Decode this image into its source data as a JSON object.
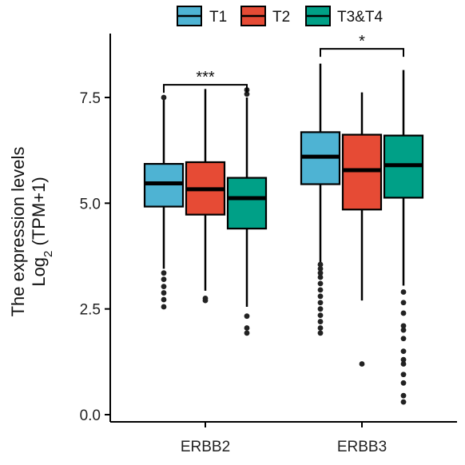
{
  "chart_data": {
    "type": "box",
    "ylabel_line1": "The expression levels",
    "ylabel_line2_prefix": "Log",
    "ylabel_line2_sub": "2",
    "ylabel_line2_suffix": " (TPM+1)",
    "ylim": [
      0,
      9
    ],
    "yticks": [
      0.0,
      2.5,
      5.0,
      7.5
    ],
    "ytick_labels": [
      "0.0",
      "2.5",
      "5.0",
      "7.5"
    ],
    "legend_position": "top",
    "grid": false,
    "categories": [
      "ERBB2",
      "ERBB3"
    ],
    "series": [
      {
        "name": "T1",
        "color": "#4EB3D3"
      },
      {
        "name": "T2",
        "color": "#E64B35"
      },
      {
        "name": "T3&T4",
        "color": "#00A087"
      }
    ],
    "boxes": [
      {
        "category": "ERBB2",
        "series": "T1",
        "q1": 4.92,
        "median": 5.47,
        "q3": 5.93,
        "whisker_low": 3.45,
        "whisker_high": 7.45,
        "outliers": [
          3.35,
          3.2,
          3.03,
          2.88,
          2.72,
          2.55,
          7.5
        ]
      },
      {
        "category": "ERBB2",
        "series": "T2",
        "q1": 4.73,
        "median": 5.33,
        "q3": 5.97,
        "whisker_low": 2.93,
        "whisker_high": 7.7,
        "outliers": [
          2.75,
          2.7
        ]
      },
      {
        "category": "ERBB2",
        "series": "T3&T4",
        "q1": 4.4,
        "median": 5.12,
        "q3": 5.6,
        "whisker_low": 2.55,
        "whisker_high": 7.5,
        "outliers": [
          2.33,
          2.05,
          1.93,
          7.58,
          7.68
        ]
      },
      {
        "category": "ERBB3",
        "series": "T1",
        "q1": 5.45,
        "median": 6.1,
        "q3": 6.68,
        "whisker_low": 3.6,
        "whisker_high": 8.3,
        "outliers": [
          3.55,
          3.45,
          3.35,
          3.25,
          3.1,
          2.95,
          2.8,
          2.65,
          2.5,
          2.35,
          2.2,
          2.05,
          1.93
        ]
      },
      {
        "category": "ERBB3",
        "series": "T2",
        "q1": 4.85,
        "median": 5.78,
        "q3": 6.62,
        "whisker_low": 2.7,
        "whisker_high": 7.62,
        "outliers": [
          1.2
        ]
      },
      {
        "category": "ERBB3",
        "series": "T3&T4",
        "q1": 5.13,
        "median": 5.9,
        "q3": 6.6,
        "whisker_low": 3.05,
        "whisker_high": 8.15,
        "outliers": [
          2.9,
          2.65,
          2.4,
          2.1,
          2.0,
          1.8,
          1.5,
          1.3,
          1.2,
          0.95,
          0.75,
          0.45,
          0.3
        ]
      }
    ],
    "annotations": [
      {
        "category": "ERBB2",
        "text": "***",
        "from_series": "T1",
        "to_series": "T3&T4",
        "y": 7.8
      },
      {
        "category": "ERBB3",
        "text": "*",
        "from_series": "T1",
        "to_series": "T3&T4",
        "y": 8.65
      }
    ]
  }
}
